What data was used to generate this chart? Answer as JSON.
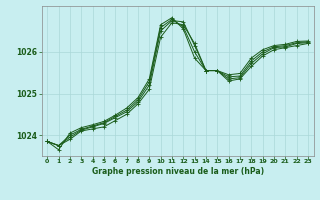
{
  "title": "Graphe pression niveau de la mer (hPa)",
  "background_color": "#c8eef0",
  "grid_color": "#aad8d8",
  "line_color": "#1a5c1a",
  "xlim": [
    -0.5,
    23.5
  ],
  "ylim": [
    1023.5,
    1027.1
  ],
  "yticks": [
    1024,
    1025,
    1026
  ],
  "xticks": [
    0,
    1,
    2,
    3,
    4,
    5,
    6,
    7,
    8,
    9,
    10,
    11,
    12,
    13,
    14,
    15,
    16,
    17,
    18,
    19,
    20,
    21,
    22,
    23
  ],
  "series": [
    [
      1023.85,
      1023.75,
      1023.9,
      1024.1,
      1024.15,
      1024.2,
      1024.35,
      1024.5,
      1024.75,
      1025.1,
      1026.35,
      1026.7,
      1026.65,
      1026.2,
      1025.55,
      1025.55,
      1025.3,
      1025.35,
      1025.65,
      1025.9,
      1026.05,
      1026.1,
      1026.15,
      1026.2
    ],
    [
      1023.85,
      1023.75,
      1023.95,
      1024.12,
      1024.2,
      1024.28,
      1024.42,
      1024.56,
      1024.8,
      1025.2,
      1026.5,
      1026.75,
      1026.72,
      1026.15,
      1025.55,
      1025.55,
      1025.35,
      1025.38,
      1025.72,
      1025.95,
      1026.1,
      1026.12,
      1026.2,
      1026.22
    ],
    [
      1023.85,
      1023.75,
      1024.0,
      1024.14,
      1024.22,
      1024.3,
      1024.45,
      1024.6,
      1024.85,
      1025.28,
      1026.58,
      1026.78,
      1026.6,
      1026.0,
      1025.55,
      1025.55,
      1025.4,
      1025.42,
      1025.78,
      1026.0,
      1026.12,
      1026.15,
      1026.22,
      1026.24
    ],
    [
      1023.85,
      1023.65,
      1024.05,
      1024.18,
      1024.25,
      1024.33,
      1024.48,
      1024.65,
      1024.9,
      1025.35,
      1026.65,
      1026.82,
      1026.55,
      1025.85,
      1025.55,
      1025.55,
      1025.45,
      1025.48,
      1025.85,
      1026.05,
      1026.15,
      1026.18,
      1026.25,
      1026.26
    ]
  ]
}
